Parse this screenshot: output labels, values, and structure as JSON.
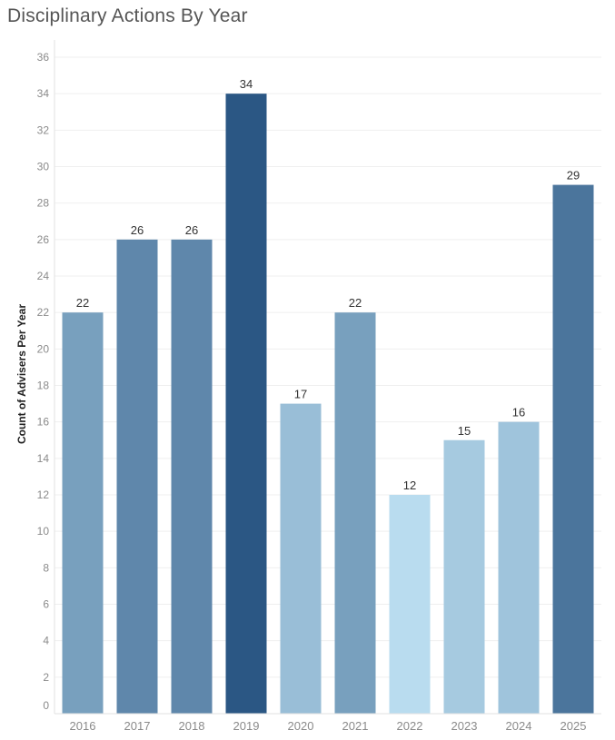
{
  "chart_data": {
    "type": "bar",
    "title": "Disciplinary Actions By Year",
    "xlabel": "",
    "ylabel": "Count of Advisers Per Year",
    "categories": [
      "2016",
      "2017",
      "2018",
      "2019",
      "2020",
      "2021",
      "2022",
      "2023",
      "2024",
      "2025"
    ],
    "values": [
      22,
      26,
      26,
      34,
      17,
      22,
      12,
      15,
      16,
      29
    ],
    "ylim": [
      0,
      36
    ],
    "yticks": [
      0,
      2,
      4,
      6,
      8,
      10,
      12,
      14,
      16,
      18,
      20,
      22,
      24,
      26,
      28,
      30,
      32,
      34,
      36
    ],
    "grid": true,
    "legend": "none",
    "color_scale": {
      "min_color": "#b9dcef",
      "max_color": "#2b5784"
    },
    "data_labels": true
  }
}
